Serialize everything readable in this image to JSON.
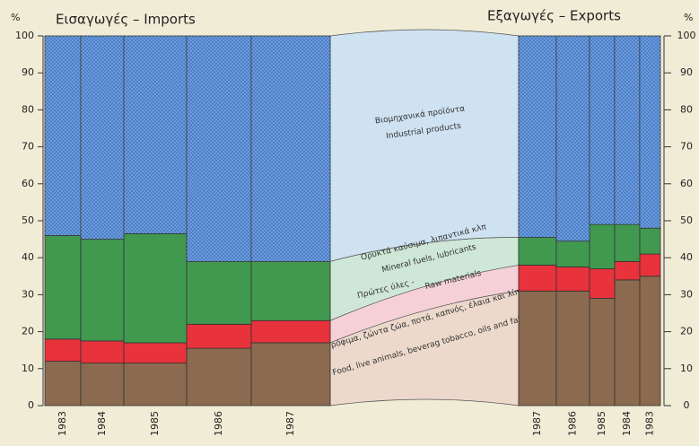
{
  "chart_data": [
    {
      "type": "stacked_bar",
      "title": "Εισαγωγές  –  Imports",
      "y_label": "%",
      "categories": [
        "1983",
        "1984",
        "1985",
        "1986",
        "1987"
      ],
      "series": [
        {
          "name": "Food, live animals, beverag tobacco, oils and fats",
          "name_el": "Τρόφιμα, ζώντα ζώα, ποτά, καπνός, έλαια και λίπη",
          "color": "#8b6a4f",
          "values": [
            12,
            11.5,
            11.5,
            15.5,
            17
          ]
        },
        {
          "name": "Raw materials",
          "name_el": "Πρώτες ύλες -",
          "color": "#e8323c",
          "values": [
            6,
            6,
            5.5,
            6.5,
            6
          ]
        },
        {
          "name": "Mineral fuels, lubricants",
          "name_el": "Ορυκτά καύσιμα, λιπαντικά κλπ",
          "color": "#41994f",
          "values": [
            28,
            27.5,
            29.5,
            17,
            16
          ]
        },
        {
          "name": "Industrial products",
          "name_el": "Βιομηχανικά προϊόντα",
          "color": "#4a80cc",
          "values": [
            54,
            55,
            53.5,
            61,
            61
          ]
        }
      ],
      "ylim": [
        0,
        100
      ],
      "yticks": [
        0,
        10,
        20,
        30,
        40,
        50,
        60,
        70,
        80,
        90,
        100
      ]
    },
    {
      "type": "stacked_bar",
      "title": "Εξαγωγές  –  Exports",
      "y_label": "%",
      "categories": [
        "1987",
        "1986",
        "1985",
        "1984",
        "1983"
      ],
      "series": [
        {
          "color": "#8b6a4f",
          "values": [
            31,
            31,
            29,
            34,
            35
          ]
        },
        {
          "color": "#e8323c",
          "values": [
            7,
            6.5,
            8,
            5,
            6
          ]
        },
        {
          "color": "#41994f",
          "values": [
            7.5,
            7,
            12,
            10,
            7
          ]
        },
        {
          "color": "#4a80cc",
          "values": [
            54.5,
            55.5,
            51,
            51,
            52
          ]
        }
      ],
      "ylim": [
        0,
        100
      ],
      "yticks": [
        0,
        10,
        20,
        30,
        40,
        50,
        60,
        70,
        80,
        90,
        100
      ]
    }
  ]
}
